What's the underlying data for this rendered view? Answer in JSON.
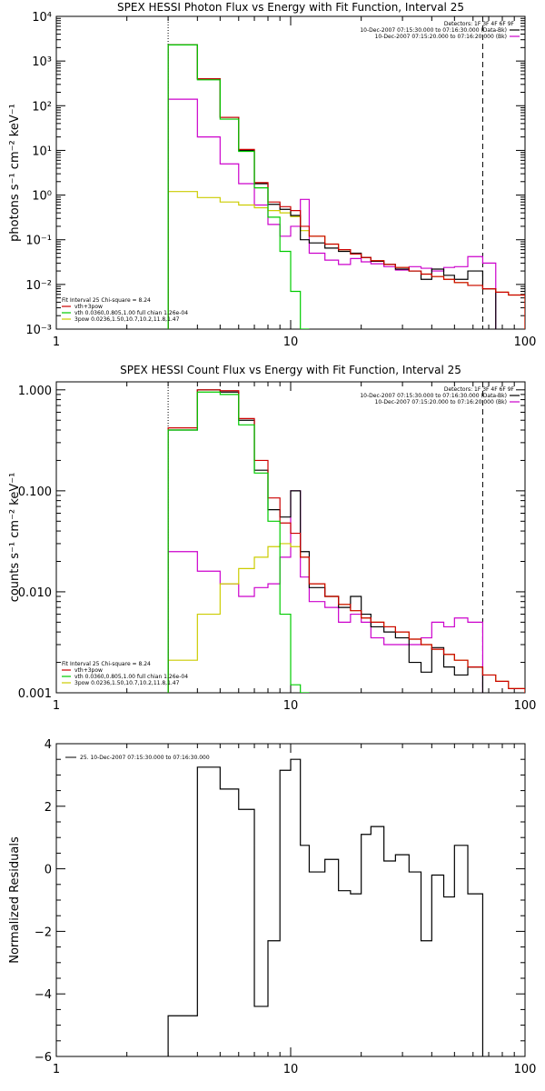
{
  "chart_data": [
    {
      "type": "line",
      "title": "SPEX HESSI Photon Flux vs Energy with Fit Function, Interval 25",
      "ylabel": "photons s⁻¹ cm⁻² keV⁻¹",
      "xlabel": "",
      "xscale": "log",
      "yscale": "log",
      "xlim": [
        1,
        100
      ],
      "ylim": [
        0.001,
        10000
      ],
      "xticks": [
        "1",
        "10",
        "100"
      ],
      "yticks": [
        "10⁻³",
        "10⁻²",
        "10⁻¹",
        "10⁰",
        "10¹",
        "10²",
        "10³",
        "10⁴"
      ],
      "edges": [
        3,
        4,
        5,
        6,
        7,
        8,
        9,
        10,
        11,
        12,
        14,
        16,
        18,
        20,
        22,
        25,
        28,
        32,
        36,
        40,
        45,
        50,
        57,
        66,
        75,
        85,
        100
      ],
      "vlines": [
        {
          "x": 3,
          "style": "dotted"
        },
        {
          "x": 66,
          "style": "dashed"
        }
      ],
      "legend_top": {
        "header": "Detectors: 1F 3F 4F 6F 9F",
        "items": [
          {
            "label": "10-Dec-2007 07:15:30.000 to 07:16:30.000 (Data-Bk)",
            "color": "#000000"
          },
          {
            "label": "10-Dec-2007 07:15:20.000 to 07:16:20.000 (Bk)",
            "color": "#cc00cc"
          }
        ]
      },
      "legend_bottom": {
        "header": "Fit Interval 25   Chi-square = 8.24",
        "items": [
          {
            "label": "vth+3pow",
            "color": "#cc0000"
          },
          {
            "label": "vth 0.0360,0.805,1.00  full chian 1.26e-04",
            "color": "#00cc00"
          },
          {
            "label": "3pow 0.0236,1.50,10.7,10.2,11.8,1.47",
            "color": "#cccc00"
          }
        ]
      },
      "series": [
        {
          "name": "Data-Bk",
          "color": "#000000",
          "values": [
            2300,
            400,
            55,
            10,
            1.8,
            0.62,
            0.48,
            0.35,
            0.1,
            0.085,
            0.065,
            0.055,
            0.05,
            0.04,
            0.033,
            0.028,
            0.022,
            0.02,
            0.013,
            0.022,
            0.016,
            0.013,
            0.02,
            0.008
          ]
        },
        {
          "name": "Bk",
          "color": "#cc00cc",
          "values": [
            140,
            20,
            5,
            1.8,
            0.6,
            0.22,
            0.12,
            0.2,
            0.8,
            0.05,
            0.035,
            0.028,
            0.038,
            0.032,
            0.029,
            0.025,
            0.021,
            0.025,
            0.023,
            0.02,
            0.024,
            0.025,
            0.042,
            0.03
          ]
        },
        {
          "name": "vth+3pow",
          "color": "#cc0000",
          "values": [
            2300,
            400,
            55,
            10.5,
            1.9,
            0.7,
            0.55,
            0.45,
            0.2,
            0.12,
            0.08,
            0.06,
            0.048,
            0.04,
            0.034,
            0.028,
            0.024,
            0.02,
            0.017,
            0.015,
            0.013,
            0.011,
            0.0095,
            0.008,
            0.0067,
            0.0058
          ]
        },
        {
          "name": "vth",
          "color": "#00cc00",
          "values": [
            2300,
            380,
            50,
            9.5,
            1.45,
            0.32,
            0.055,
            0.007,
            0.0005
          ]
        },
        {
          "name": "3pow",
          "color": "#cccc00",
          "values": [
            1.2,
            0.88,
            0.7,
            0.6,
            0.52,
            0.45,
            0.4,
            0.33,
            0.16,
            0.12,
            0.08,
            0.06,
            0.048,
            0.04,
            0.034,
            0.028,
            0.024,
            0.02,
            0.017,
            0.015,
            0.013,
            0.011,
            0.0095,
            0.008,
            0.0067,
            0.0058
          ]
        }
      ]
    },
    {
      "type": "line",
      "title": "SPEX HESSI Count Flux vs Energy with Fit Function, Interval 25",
      "ylabel": "counts s⁻¹ cm⁻² keV⁻¹",
      "xlabel": "",
      "xscale": "log",
      "yscale": "log",
      "xlim": [
        1,
        100
      ],
      "ylim": [
        0.001,
        1.2
      ],
      "xticks": [
        "1",
        "10",
        "100"
      ],
      "yticks": [
        "0.001",
        "0.010",
        "0.100",
        "1.000"
      ],
      "edges": [
        3,
        4,
        5,
        6,
        7,
        8,
        9,
        10,
        11,
        12,
        14,
        16,
        18,
        20,
        22,
        25,
        28,
        32,
        36,
        40,
        45,
        50,
        57,
        66,
        75,
        85,
        100
      ],
      "vlines": [
        {
          "x": 3,
          "style": "dotted"
        },
        {
          "x": 66,
          "style": "dashed"
        }
      ],
      "legend_top": {
        "header": "Detectors: 1F 3F 4F 6F 9F",
        "items": [
          {
            "label": "10-Dec-2007 07:15:30.000 to 07:16:30.000 (Data-Bk)",
            "color": "#000000"
          },
          {
            "label": "10-Dec-2007 07:15:20.000 to 07:16:20.000 (Bk)",
            "color": "#cc00cc"
          }
        ]
      },
      "legend_bottom": {
        "header": "Fit Interval 25   Chi-square = 8.24",
        "items": [
          {
            "label": "vth+3pow",
            "color": "#cc0000"
          },
          {
            "label": "vth 0.0360,0.805,1.00  full chian 1.26e-04",
            "color": "#00cc00"
          },
          {
            "label": "3pow 0.0236,1.50,10.7,10.2,11.8,1.47",
            "color": "#cccc00"
          }
        ]
      },
      "series": [
        {
          "name": "Data-Bk",
          "color": "#000000",
          "values": [
            0.4,
            1.0,
            0.95,
            0.5,
            0.16,
            0.065,
            0.055,
            0.1,
            0.025,
            0.011,
            0.009,
            0.007,
            0.009,
            0.006,
            0.0045,
            0.004,
            0.0035,
            0.002,
            0.0016,
            0.0028,
            0.0018,
            0.0015,
            0.0018
          ]
        },
        {
          "name": "Bk",
          "color": "#cc00cc",
          "values": [
            0.025,
            0.016,
            0.012,
            0.009,
            0.011,
            0.012,
            0.022,
            0.1,
            0.014,
            0.008,
            0.007,
            0.005,
            0.006,
            0.005,
            0.0035,
            0.003,
            0.003,
            0.003,
            0.0035,
            0.005,
            0.0045,
            0.0055,
            0.005
          ]
        },
        {
          "name": "vth+3pow",
          "color": "#cc0000",
          "values": [
            0.42,
            1.0,
            0.98,
            0.52,
            0.2,
            0.085,
            0.048,
            0.038,
            0.022,
            0.012,
            0.009,
            0.0075,
            0.0065,
            0.0055,
            0.005,
            0.0045,
            0.004,
            0.0034,
            0.003,
            0.0027,
            0.0024,
            0.0021,
            0.0018,
            0.0015,
            0.0013,
            0.0011
          ]
        },
        {
          "name": "vth",
          "color": "#00cc00",
          "values": [
            0.4,
            0.95,
            0.9,
            0.45,
            0.15,
            0.05,
            0.006,
            0.0012,
            0.0003
          ]
        },
        {
          "name": "3pow",
          "color": "#cccc00",
          "values": [
            0.0021,
            0.006,
            0.012,
            0.017,
            0.022,
            0.028,
            0.03,
            0.028,
            0.022,
            0.012,
            0.009,
            0.0075,
            0.0065,
            0.0055,
            0.005,
            0.0045,
            0.004,
            0.0034,
            0.003,
            0.0027,
            0.0024,
            0.0021,
            0.0018,
            0.0015,
            0.0013,
            0.0011
          ]
        }
      ]
    },
    {
      "type": "line",
      "title": "",
      "ylabel": "Normalized Residuals",
      "xlabel": "",
      "xscale": "log",
      "yscale": "linear",
      "xlim": [
        1,
        100
      ],
      "ylim": [
        -6,
        4
      ],
      "xticks": [
        "1",
        "10",
        "100"
      ],
      "yticks": [
        "−6",
        "−4",
        "−2",
        "0",
        "2",
        "4"
      ],
      "edges": [
        3,
        4,
        5,
        6,
        7,
        8,
        9,
        10,
        11,
        12,
        14,
        16,
        18,
        20,
        22,
        25,
        28,
        32,
        36,
        40,
        45,
        50,
        57,
        66
      ],
      "legend_top": {
        "header": "",
        "items": [
          {
            "label": "25. 10-Dec-2007 07:15:30.000 to 07:16:30.000",
            "color": "#000000"
          }
        ]
      },
      "series": [
        {
          "name": "Residuals",
          "color": "#000000",
          "values": [
            -4.7,
            3.25,
            2.55,
            1.9,
            -4.4,
            -2.3,
            3.15,
            3.5,
            0.75,
            -0.1,
            0.3,
            -0.7,
            -0.8,
            1.1,
            1.35,
            0.25,
            0.45,
            -0.1,
            -2.3,
            -0.2,
            -0.9,
            0.75,
            -0.8
          ]
        }
      ]
    }
  ]
}
